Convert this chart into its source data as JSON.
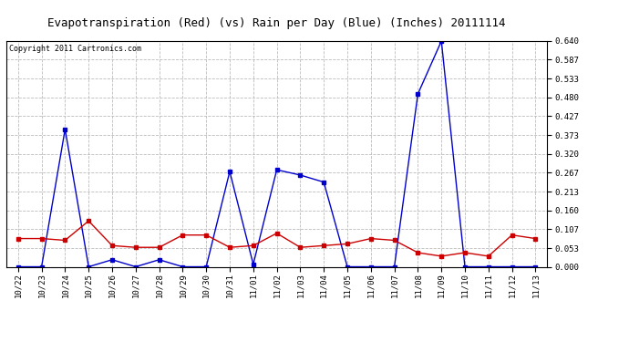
{
  "title": "Evapotranspiration (Red) (vs) Rain per Day (Blue) (Inches) 20111114",
  "copyright": "Copyright 2011 Cartronics.com",
  "x_labels": [
    "10/22",
    "10/23",
    "10/24",
    "10/25",
    "10/26",
    "10/27",
    "10/28",
    "10/29",
    "10/30",
    "10/31",
    "11/01",
    "11/02",
    "11/03",
    "11/04",
    "11/05",
    "11/06",
    "11/07",
    "11/08",
    "11/09",
    "11/10",
    "11/11",
    "11/12",
    "11/13"
  ],
  "blue_data": [
    0.0,
    0.0,
    0.39,
    0.0,
    0.02,
    0.0,
    0.02,
    0.0,
    0.0,
    0.27,
    0.007,
    0.275,
    0.26,
    0.24,
    0.0,
    0.0,
    0.0,
    0.49,
    0.64,
    0.0,
    0.0,
    0.0,
    0.0
  ],
  "red_data": [
    0.08,
    0.08,
    0.075,
    0.13,
    0.06,
    0.055,
    0.055,
    0.09,
    0.09,
    0.055,
    0.06,
    0.095,
    0.055,
    0.06,
    0.065,
    0.08,
    0.075,
    0.04,
    0.03,
    0.04,
    0.03,
    0.09,
    0.08
  ],
  "y_ticks": [
    0.0,
    0.053,
    0.107,
    0.16,
    0.213,
    0.267,
    0.32,
    0.373,
    0.427,
    0.48,
    0.533,
    0.587,
    0.64
  ],
  "y_max": 0.64,
  "bg_color": "#ffffff",
  "plot_bg_color": "#ffffff",
  "grid_color": "#bbbbbb",
  "blue_color": "#0000cc",
  "red_color": "#cc0000",
  "title_fontsize": 9,
  "copyright_fontsize": 6,
  "tick_fontsize": 6.5
}
